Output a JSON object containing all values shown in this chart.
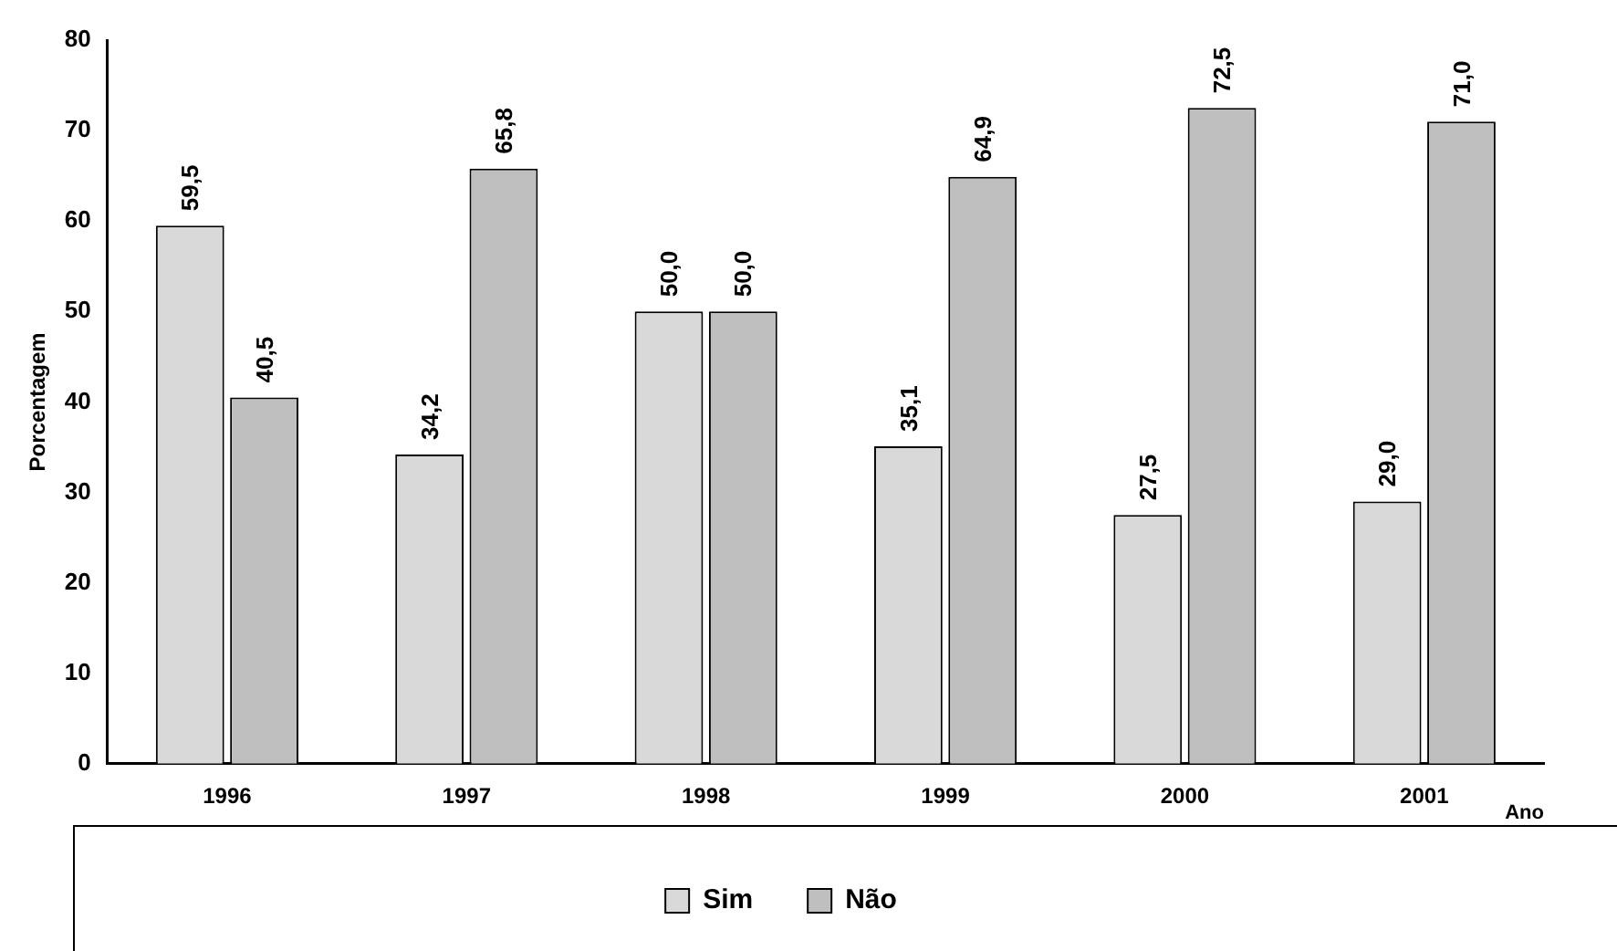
{
  "chart_data": {
    "type": "bar",
    "xlabel": "Ano",
    "ylabel": "Porcentagem",
    "categories": [
      "1996",
      "1997",
      "1998",
      "1999",
      "2000",
      "2001"
    ],
    "series": [
      {
        "name": "Sim",
        "color": "#d9d9d9",
        "values": [
          59.5,
          34.2,
          50.0,
          35.1,
          27.5,
          29.0
        ],
        "value_labels": [
          "59,5",
          "34,2",
          "50,0",
          "35,1",
          "27,5",
          "29,0"
        ]
      },
      {
        "name": "Não",
        "color": "#bfbfbf",
        "values": [
          40.5,
          65.8,
          50.0,
          64.9,
          72.5,
          71.0
        ],
        "value_labels": [
          "40,5",
          "65,8",
          "50,0",
          "64,9",
          "72,5",
          "71,0"
        ]
      }
    ],
    "ylim": [
      0,
      80
    ],
    "yticks": [
      0,
      10,
      20,
      30,
      40,
      50,
      60,
      70,
      80
    ],
    "grid": false,
    "legend": "bottom"
  }
}
